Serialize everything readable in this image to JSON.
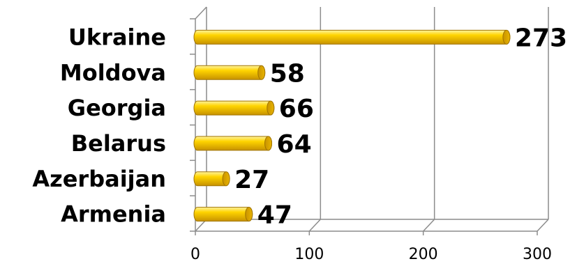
{
  "chart_data": {
    "type": "bar",
    "orientation": "horizontal",
    "style": "3d-cylinder",
    "categories": [
      "Ukraine",
      "Moldova",
      "Georgia",
      "Belarus",
      "Azerbaijan",
      "Armenia"
    ],
    "values": [
      273,
      58,
      66,
      64,
      27,
      47
    ],
    "xlim": [
      0,
      300
    ],
    "xticks": [
      "0",
      "100",
      "200",
      "300"
    ],
    "grid": "vertical",
    "legend": "none",
    "bar_color": "#f5c400",
    "data_labels": [
      "273",
      "58",
      "66",
      "64",
      "27",
      "47"
    ]
  }
}
